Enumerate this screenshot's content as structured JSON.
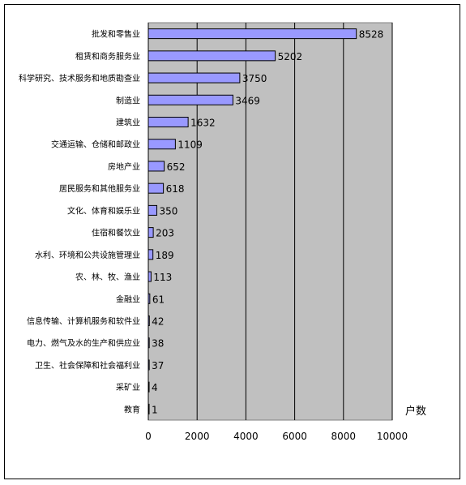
{
  "chart_data": {
    "type": "bar",
    "orientation": "horizontal",
    "categories": [
      "批发和零售业",
      "租赁和商务服务业",
      "科学研究、技术服务和地质勘查业",
      "制造业",
      "建筑业",
      "交通运输、仓储和邮政业",
      "房地产业",
      "居民服务和其他服务业",
      "文化、体育和娱乐业",
      "住宿和餐饮业",
      "水利、环境和公共设施管理业",
      "农、林、牧、渔业",
      "金融业",
      "信息传输、计算机服务和软件业",
      "电力、燃气及水的生产和供应业",
      "卫生、社会保障和社会福利业",
      "采矿业",
      "教育"
    ],
    "values": [
      8528,
      5202,
      3750,
      3469,
      1632,
      1109,
      652,
      618,
      350,
      203,
      189,
      113,
      61,
      42,
      38,
      37,
      4,
      1
    ],
    "xlim": [
      0,
      10000
    ],
    "xticks": [
      0,
      2000,
      4000,
      6000,
      8000,
      10000
    ],
    "unit_label": "户数",
    "grid": true,
    "colors": {
      "bar_fill": "#9999ff",
      "bar_stroke": "#000000",
      "plot_background": "#c0c0c0",
      "gridline": "#000000"
    }
  }
}
